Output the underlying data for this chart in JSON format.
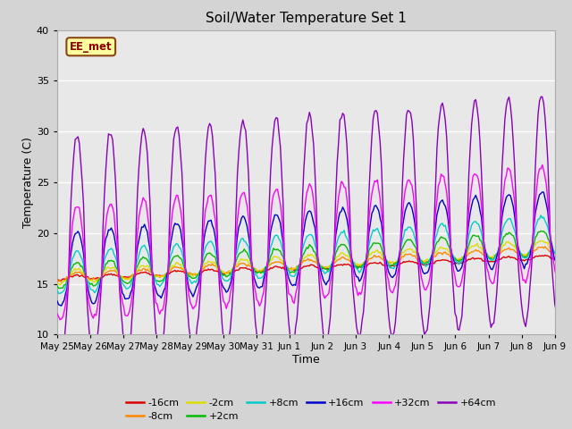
{
  "title": "Soil/Water Temperature Set 1",
  "xlabel": "Time",
  "ylabel": "Temperature (C)",
  "ylim": [
    10,
    40
  ],
  "background_color": "#e8e8e8",
  "fig_bg_color": "#d4d4d4",
  "annotation_text": "EE_met",
  "annotation_bg": "#ffffa0",
  "annotation_border": "#8b4513",
  "annotation_text_color": "#8b0000",
  "series_order": [
    "-16cm",
    "-8cm",
    "-2cm",
    "+2cm",
    "+8cm",
    "+16cm",
    "+64cm",
    "+32cm"
  ],
  "series": {
    "-16cm": {
      "color": "#dd0000",
      "base": 15.5,
      "trend": 0.14,
      "amp": 0.25,
      "sigma": 0.0,
      "phase": 0.35,
      "noise": 0.05
    },
    "-8cm": {
      "color": "#ff8800",
      "base": 15.5,
      "trend": 0.18,
      "amp": 0.5,
      "sigma": 0.0,
      "phase": 0.35,
      "noise": 0.07
    },
    "-2cm": {
      "color": "#dddd00",
      "base": 15.5,
      "trend": 0.2,
      "amp": 0.8,
      "sigma": 0.0,
      "phase": 0.35,
      "noise": 0.08
    },
    "+2cm": {
      "color": "#00bb00",
      "base": 15.5,
      "trend": 0.22,
      "amp": 1.5,
      "sigma": 0.0,
      "phase": 0.35,
      "noise": 0.08
    },
    "+8cm": {
      "color": "#00cccc",
      "base": 15.5,
      "trend": 0.25,
      "amp": 2.5,
      "sigma": 0.0,
      "phase": 0.35,
      "noise": 0.08
    },
    "+16cm": {
      "color": "#0000cc",
      "base": 15.5,
      "trend": 0.28,
      "amp": 4.5,
      "sigma": 0.0,
      "phase": 0.35,
      "noise": 0.1
    },
    "+32cm": {
      "color": "#ff00ff",
      "base": 15.5,
      "trend": 0.28,
      "amp": 7.0,
      "sigma": 0.0,
      "phase": 0.35,
      "noise": 0.15
    },
    "+64cm": {
      "color": "#8800bb",
      "base": 15.5,
      "trend": 0.28,
      "amp": 14.0,
      "sigma": 0.0,
      "phase": 0.35,
      "noise": 0.2
    }
  },
  "tick_labels": [
    "May 25",
    "May 26",
    "May 27",
    "May 28",
    "May 29",
    "May 30",
    "May 31",
    "Jun 1",
    "Jun 2",
    "Jun 3",
    "Jun 4",
    "Jun 5",
    "Jun 6",
    "Jun 7",
    "Jun 8",
    "Jun 9"
  ],
  "tick_positions": [
    0,
    1,
    2,
    3,
    4,
    5,
    6,
    7,
    8,
    9,
    10,
    11,
    12,
    13,
    14,
    15
  ],
  "legend_row1": [
    "-16cm",
    "-8cm",
    "-2cm",
    "+2cm",
    "+8cm",
    "+16cm"
  ],
  "legend_row2": [
    "+32cm",
    "+64cm"
  ]
}
